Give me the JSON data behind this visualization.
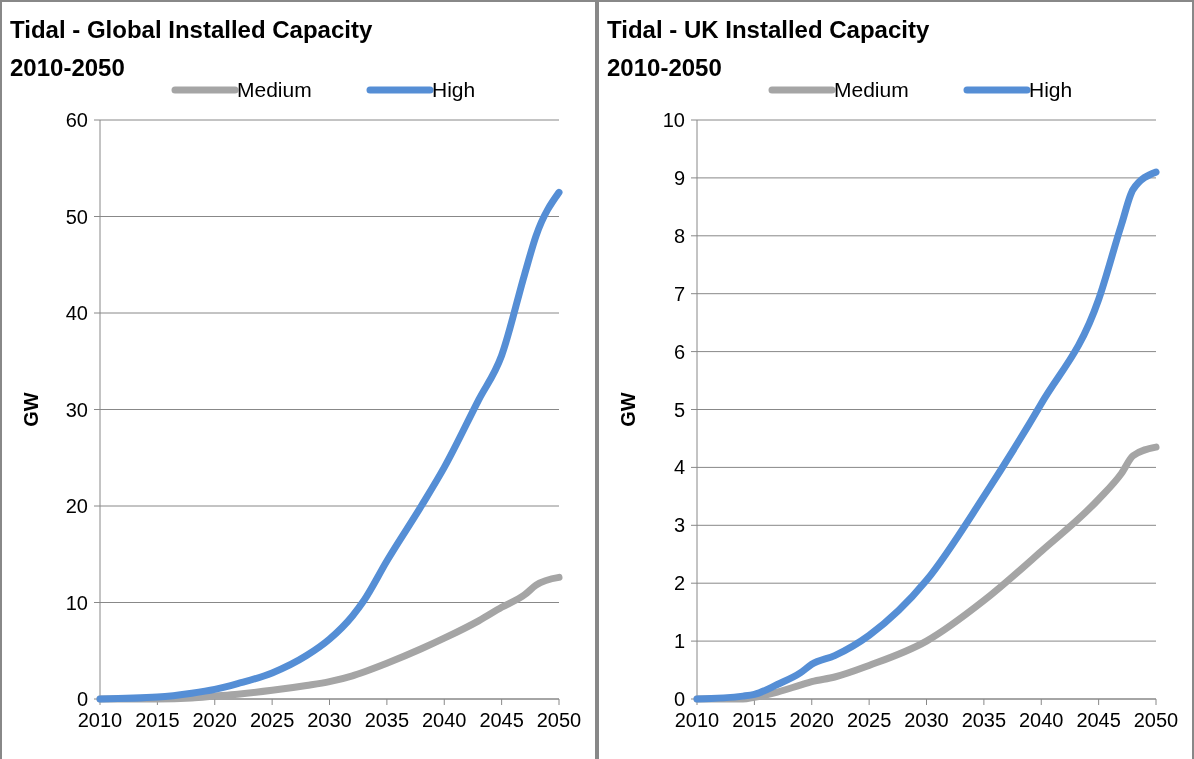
{
  "chart_data": [
    {
      "type": "line",
      "title": "Tidal - Global Installed Capacity 2010-2050",
      "ylabel": "GW",
      "x": [
        2010,
        2015,
        2018,
        2020,
        2022,
        2025,
        2028,
        2030,
        2032,
        2033,
        2035,
        2038,
        2040,
        2043,
        2045,
        2047,
        2048,
        2050
      ],
      "series": [
        {
          "name": "Medium",
          "color": "#a5a5a5",
          "values": [
            0,
            0,
            0.1,
            0.3,
            0.5,
            0.9,
            1.4,
            1.8,
            2.4,
            2.8,
            3.7,
            5.2,
            6.3,
            8.1,
            9.5,
            10.8,
            11.8,
            12.6
          ]
        },
        {
          "name": "High",
          "color": "#558ed5",
          "values": [
            0,
            0.2,
            0.6,
            1.0,
            1.6,
            2.7,
            4.5,
            6.2,
            8.6,
            10.2,
            14.3,
            20,
            24,
            31,
            35.6,
            44,
            48,
            52.5
          ]
        }
      ],
      "xlim": [
        2010,
        2050
      ],
      "xticks": [
        2010,
        2015,
        2020,
        2025,
        2030,
        2035,
        2040,
        2045,
        2050
      ],
      "ylim": [
        0,
        60
      ],
      "yticks": [
        0,
        10,
        20,
        30,
        40,
        50,
        60
      ],
      "grid": "y",
      "legend": "top",
      "line_style": "solid"
    },
    {
      "type": "line",
      "title": "Tidal - UK Installed Capacity 2010-2050",
      "ylabel": "GW",
      "x": [
        2010,
        2014,
        2015,
        2017,
        2019,
        2020,
        2022,
        2025,
        2030,
        2035,
        2040,
        2045,
        2047,
        2048,
        2050
      ],
      "series": [
        {
          "name": "Medium",
          "color": "#a5a5a5",
          "values": [
            0,
            0,
            0.03,
            0.12,
            0.24,
            0.3,
            0.38,
            0.58,
            1.0,
            1.7,
            2.55,
            3.45,
            3.9,
            4.2,
            4.35
          ]
        },
        {
          "name": "High",
          "color": "#558ed5",
          "values": [
            0,
            0.05,
            0.08,
            0.25,
            0.45,
            0.6,
            0.75,
            1.1,
            2.05,
            3.5,
            5.1,
            6.9,
            8.2,
            8.8,
            9.1
          ]
        }
      ],
      "xlim": [
        2010,
        2050
      ],
      "xticks": [
        2010,
        2015,
        2020,
        2025,
        2030,
        2035,
        2040,
        2045,
        2050
      ],
      "ylim": [
        0,
        10
      ],
      "yticks": [
        0,
        1,
        2,
        3,
        4,
        5,
        6,
        7,
        8,
        9,
        10
      ],
      "grid": "y",
      "legend": "top",
      "line_style": "solid"
    }
  ]
}
